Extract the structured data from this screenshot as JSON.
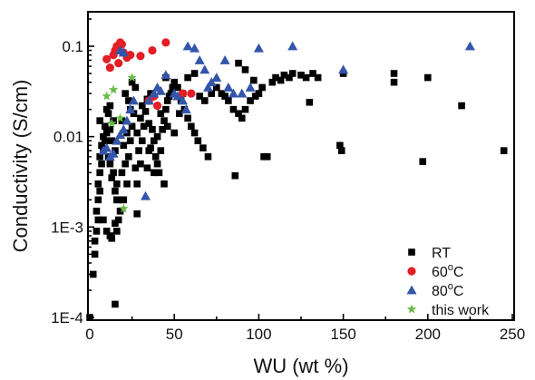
{
  "chart_data": {
    "type": "scatter",
    "xlabel": "WU (wt %)",
    "ylabel": "Conductivity (S/cm)",
    "xlim": [
      0,
      250
    ],
    "ylim": [
      0.0001,
      0.2
    ],
    "yscale": "log",
    "x_ticks": [
      0,
      50,
      100,
      150,
      200,
      250
    ],
    "y_ticks": [
      {
        "value": 0.0001,
        "label": "1E-4"
      },
      {
        "value": 0.001,
        "label": "1E-3"
      },
      {
        "value": 0.01,
        "label": "0.01"
      },
      {
        "value": 0.1,
        "label": "0.1"
      }
    ],
    "grid": false,
    "legend_position": "bottom-right",
    "series": [
      {
        "name": "RT",
        "marker": "square",
        "color": "#000000",
        "points": [
          [
            0,
            0.0001
          ],
          [
            2,
            0.0003
          ],
          [
            3,
            0.0005
          ],
          [
            3,
            0.0007
          ],
          [
            4,
            0.0009
          ],
          [
            5,
            0.0012
          ],
          [
            4,
            0.0015
          ],
          [
            5,
            0.002
          ],
          [
            6,
            0.0025
          ],
          [
            5,
            0.003
          ],
          [
            6,
            0.004
          ],
          [
            7,
            0.005
          ],
          [
            6,
            0.006
          ],
          [
            8,
            0.007
          ],
          [
            7,
            0.008
          ],
          [
            9,
            0.009
          ],
          [
            8,
            0.01
          ],
          [
            10,
            0.011
          ],
          [
            9,
            0.013
          ],
          [
            6,
            0.015
          ],
          [
            11,
            0.018
          ],
          [
            10,
            0.02
          ],
          [
            12,
            0.022
          ],
          [
            14,
            0.015
          ],
          [
            12,
            0.012
          ],
          [
            13,
            0.009
          ],
          [
            15,
            0.007
          ],
          [
            11,
            0.006
          ],
          [
            12,
            0.005
          ],
          [
            14,
            0.004
          ],
          [
            13,
            0.0035
          ],
          [
            16,
            0.003
          ],
          [
            15,
            0.0025
          ],
          [
            17,
            0.002
          ],
          [
            12,
            0.0008
          ],
          [
            13,
            0.00075
          ],
          [
            16,
            0.0009
          ],
          [
            15,
            0.0011
          ],
          [
            17,
            0.0012
          ],
          [
            15,
            0.00014
          ],
          [
            18,
            0.0015
          ],
          [
            20,
            0.002
          ],
          [
            22,
            0.003
          ],
          [
            19,
            0.004
          ],
          [
            21,
            0.005
          ],
          [
            23,
            0.006
          ],
          [
            20,
            0.008
          ],
          [
            24,
            0.009
          ],
          [
            22,
            0.011
          ],
          [
            25,
            0.013
          ],
          [
            19,
            0.015
          ],
          [
            26,
            0.018
          ],
          [
            24,
            0.02
          ],
          [
            23,
            0.025
          ],
          [
            21,
            0.03
          ],
          [
            27,
            0.035
          ],
          [
            25,
            0.04
          ],
          [
            28,
            0.003
          ],
          [
            27,
            0.0045
          ],
          [
            30,
            0.005
          ],
          [
            29,
            0.007
          ],
          [
            31,
            0.009
          ],
          [
            28,
            0.011
          ],
          [
            32,
            0.013
          ],
          [
            30,
            0.016
          ],
          [
            33,
            0.019
          ],
          [
            31,
            0.022
          ],
          [
            34,
            0.026
          ],
          [
            36,
            0.03
          ],
          [
            35,
            0.014
          ],
          [
            37,
            0.012
          ],
          [
            38,
            0.009
          ],
          [
            36,
            0.0075
          ],
          [
            39,
            0.006
          ],
          [
            40,
            0.005
          ],
          [
            41,
            0.004
          ],
          [
            42,
            0.007
          ],
          [
            40,
            0.01
          ],
          [
            43,
            0.012
          ],
          [
            44,
            0.015
          ],
          [
            42,
            0.018
          ],
          [
            45,
            0.02
          ],
          [
            46,
            0.025
          ],
          [
            47,
            0.028
          ],
          [
            48,
            0.03
          ],
          [
            49,
            0.035
          ],
          [
            50,
            0.04
          ],
          [
            45,
            0.045
          ],
          [
            52,
            0.035
          ],
          [
            55,
            0.03
          ],
          [
            54,
            0.025
          ],
          [
            56,
            0.02
          ],
          [
            58,
            0.016
          ],
          [
            60,
            0.013
          ],
          [
            62,
            0.011
          ],
          [
            64,
            0.009
          ],
          [
            67,
            0.0075
          ],
          [
            70,
            0.006
          ],
          [
            72,
            0.03
          ],
          [
            75,
            0.035
          ],
          [
            78,
            0.03
          ],
          [
            80,
            0.028
          ],
          [
            82,
            0.025
          ],
          [
            85,
            0.02
          ],
          [
            86,
            0.0037
          ],
          [
            88,
            0.018
          ],
          [
            90,
            0.016
          ],
          [
            92,
            0.02
          ],
          [
            95,
            0.025
          ],
          [
            98,
            0.028
          ],
          [
            100,
            0.03
          ],
          [
            102,
            0.035
          ],
          [
            103,
            0.006
          ],
          [
            105,
            0.006
          ],
          [
            108,
            0.04
          ],
          [
            110,
            0.045
          ],
          [
            113,
            0.042
          ],
          [
            115,
            0.048
          ],
          [
            118,
            0.045
          ],
          [
            120,
            0.05
          ],
          [
            125,
            0.048
          ],
          [
            128,
            0.045
          ],
          [
            130,
            0.024
          ],
          [
            132,
            0.05
          ],
          [
            135,
            0.045
          ],
          [
            148,
            0.008
          ],
          [
            149,
            0.007
          ],
          [
            150,
            0.05
          ],
          [
            180,
            0.05
          ],
          [
            180,
            0.04
          ],
          [
            197,
            0.0053
          ],
          [
            200,
            0.045
          ],
          [
            220,
            0.022
          ],
          [
            245,
            0.007
          ],
          [
            65,
            0.028
          ],
          [
            68,
            0.025
          ],
          [
            58,
            0.045
          ],
          [
            62,
            0.05
          ],
          [
            88,
            0.065
          ],
          [
            92,
            0.055
          ],
          [
            97,
            0.042
          ],
          [
            35,
            0.007
          ],
          [
            38,
            0.004
          ],
          [
            28,
            0.0014
          ],
          [
            19,
            0.002
          ],
          [
            16,
            0.002
          ],
          [
            8,
            0.0012
          ],
          [
            10,
            0.0009
          ],
          [
            34,
            0.0045
          ],
          [
            44,
            0.003
          ],
          [
            46,
            0.013
          ],
          [
            50,
            0.011
          ],
          [
            53,
            0.018
          ]
        ]
      },
      {
        "name": "60°C",
        "marker": "circle",
        "color": "#e31e24",
        "points": [
          [
            10,
            0.072
          ],
          [
            12,
            0.058
          ],
          [
            14,
            0.08
          ],
          [
            15,
            0.09
          ],
          [
            16,
            0.1
          ],
          [
            17,
            0.065
          ],
          [
            18,
            0.11
          ],
          [
            19,
            0.105
          ],
          [
            20,
            0.085
          ],
          [
            22,
            0.075
          ],
          [
            24,
            0.08
          ],
          [
            30,
            0.078
          ],
          [
            37,
            0.09
          ],
          [
            45,
            0.11
          ],
          [
            35,
            0.025
          ],
          [
            38,
            0.028
          ],
          [
            40,
            0.022
          ],
          [
            55,
            0.03
          ],
          [
            60,
            0.03
          ]
        ]
      },
      {
        "name": "80°C",
        "marker": "triangle",
        "color": "#3355aa",
        "points": [
          [
            8,
            0.007
          ],
          [
            10,
            0.0075
          ],
          [
            12,
            0.006
          ],
          [
            14,
            0.0065
          ],
          [
            16,
            0.009
          ],
          [
            18,
            0.0105
          ],
          [
            20,
            0.012
          ],
          [
            22,
            0.015
          ],
          [
            24,
            0.02
          ],
          [
            26,
            0.025
          ],
          [
            18,
            0.09
          ],
          [
            20,
            0.085
          ],
          [
            33,
            0.0022
          ],
          [
            35,
            0.025
          ],
          [
            38,
            0.03
          ],
          [
            40,
            0.035
          ],
          [
            42,
            0.032
          ],
          [
            45,
            0.048
          ],
          [
            50,
            0.03
          ],
          [
            52,
            0.028
          ],
          [
            55,
            0.025
          ],
          [
            57,
            0.02
          ],
          [
            58,
            0.1
          ],
          [
            62,
            0.095
          ],
          [
            65,
            0.07
          ],
          [
            70,
            0.035
          ],
          [
            75,
            0.045
          ],
          [
            80,
            0.07
          ],
          [
            82,
            0.035
          ],
          [
            85,
            0.03
          ],
          [
            90,
            0.03
          ],
          [
            95,
            0.035
          ],
          [
            100,
            0.095
          ],
          [
            120,
            0.1
          ],
          [
            150,
            0.055
          ],
          [
            225,
            0.1
          ],
          [
            68,
            0.055
          ],
          [
            72,
            0.04
          ]
        ]
      },
      {
        "name": "this work",
        "marker": "star",
        "color": "#66bb44",
        "points": [
          [
            10,
            0.028
          ],
          [
            14,
            0.033
          ],
          [
            18,
            0.016
          ],
          [
            20,
            0.0016
          ],
          [
            25,
            0.045
          ],
          [
            13,
            0.014
          ]
        ]
      }
    ]
  }
}
